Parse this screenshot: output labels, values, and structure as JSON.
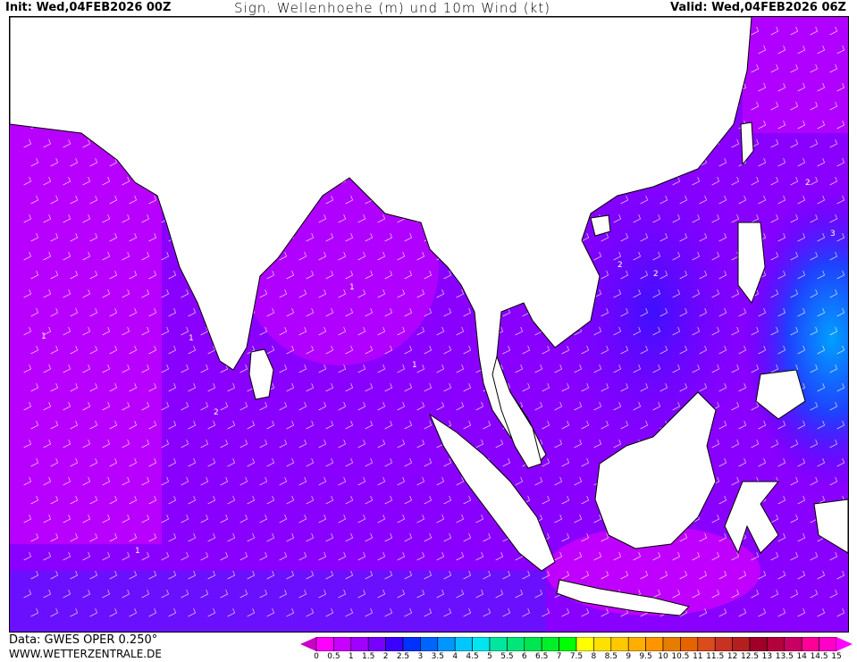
{
  "header": {
    "init": "Init: Wed,04FEB2026 00Z",
    "title": "Sign. Wellenhoehe (m) und 10m Wind (kt)",
    "valid": "Valid: Wed,04FEB2026 06Z"
  },
  "footer": {
    "data_source": "Data: GWES OPER 0.250°",
    "website": "WWW.WETTERZENTRALE.DE"
  },
  "map": {
    "region": "Indian Ocean / Southeast Asia",
    "land_color": "#ffffff",
    "contour_labels": [
      "1",
      "1",
      "1",
      "1",
      "1",
      "2",
      "2",
      "2",
      "2",
      "3"
    ]
  },
  "legend": {
    "unit": "m",
    "ticks": [
      "0",
      "0.5",
      "1",
      "1.5",
      "2",
      "2.5",
      "3",
      "3.5",
      "4",
      "4.5",
      "5",
      "5.5",
      "6",
      "6.5",
      "7",
      "7.5",
      "8",
      "8.5",
      "9",
      "9.5",
      "10",
      "10.5",
      "11",
      "11.5",
      "12",
      "12.5",
      "13",
      "13.5",
      "14",
      "14.5",
      "15"
    ],
    "under_color": "#c800c8",
    "over_color": "#ff00ff",
    "colors": [
      "#ff00ff",
      "#c800ff",
      "#a000ff",
      "#7800ff",
      "#3c00ff",
      "#0032ff",
      "#0064ff",
      "#0096ff",
      "#00c8ff",
      "#00e6f0",
      "#00e6a0",
      "#00e678",
      "#00e650",
      "#00f028",
      "#00ff00",
      "#ffff00",
      "#ffe100",
      "#ffc800",
      "#ffaf00",
      "#ff9600",
      "#e67d00",
      "#e66400",
      "#dc4b1e",
      "#c83223",
      "#b41e1e",
      "#a00028",
      "#b4003c",
      "#c80064",
      "#ff0096",
      "#ff00c8"
    ]
  }
}
